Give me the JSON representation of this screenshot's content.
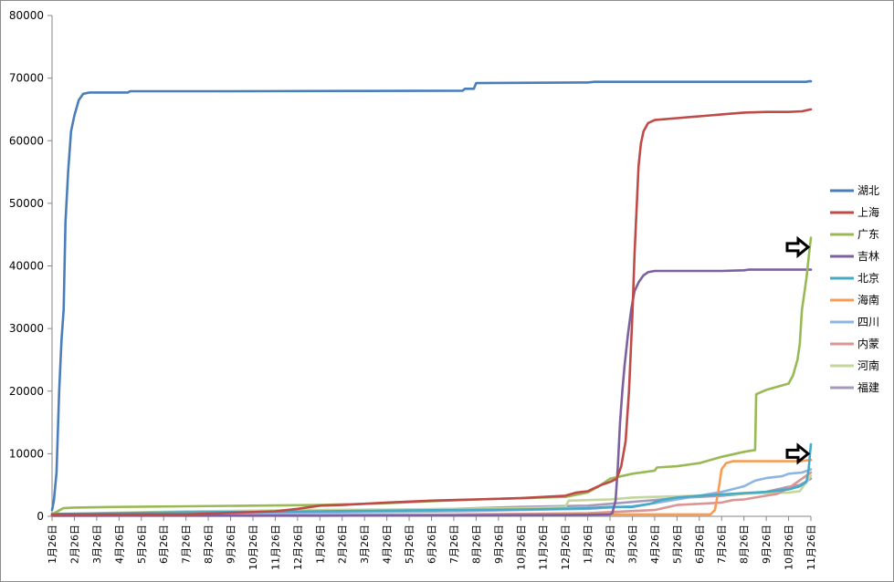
{
  "chart_data": {
    "type": "line",
    "title": "",
    "xlabel": "",
    "ylabel": "",
    "ylim": [
      0,
      80000
    ],
    "yticks": [
      "0",
      "10000",
      "20000",
      "30000",
      "40000",
      "50000",
      "60000",
      "70000",
      "80000"
    ],
    "x_tick_labels": [
      "1月26日",
      "2月26日",
      "3月26日",
      "4月26日",
      "5月26日",
      "6月26日",
      "7月26日",
      "8月26日",
      "9月26日",
      "10月26日",
      "11月26日",
      "12月26日",
      "1月26日",
      "2月26日",
      "3月26日",
      "4月26日",
      "5月26日",
      "6月26日",
      "7月26日",
      "8月26日",
      "9月26日",
      "10月26日",
      "11月26日",
      "12月26日",
      "1月26日",
      "2月26日",
      "3月26日",
      "4月26日",
      "5月26日",
      "6月26日",
      "7月26日",
      "8月26日",
      "9月26日",
      "10月26日",
      "11月26日"
    ],
    "x_domain": [
      0,
      34
    ],
    "grid": false,
    "legend_position": "right",
    "series": [
      {
        "name": "湖北",
        "color": "#4a7ebb",
        "points": [
          [
            0,
            1000
          ],
          [
            0.08,
            2500
          ],
          [
            0.2,
            7000
          ],
          [
            0.32,
            20000
          ],
          [
            0.42,
            28000
          ],
          [
            0.52,
            33000
          ],
          [
            0.6,
            47000
          ],
          [
            0.72,
            55000
          ],
          [
            0.85,
            61500
          ],
          [
            1.0,
            64000
          ],
          [
            1.2,
            66500
          ],
          [
            1.4,
            67500
          ],
          [
            1.7,
            67700
          ],
          [
            2.5,
            67700
          ],
          [
            3.4,
            67700
          ],
          [
            3.5,
            67900
          ],
          [
            8,
            67900
          ],
          [
            14,
            67950
          ],
          [
            18.4,
            68000
          ],
          [
            18.5,
            68300
          ],
          [
            18.9,
            68300
          ],
          [
            19.0,
            69200
          ],
          [
            24,
            69300
          ],
          [
            24.3,
            69400
          ],
          [
            30,
            69400
          ],
          [
            33.8,
            69400
          ],
          [
            33.9,
            69500
          ],
          [
            34,
            69500
          ]
        ]
      },
      {
        "name": "上海",
        "color": "#be4b48",
        "points": [
          [
            0,
            300
          ],
          [
            3,
            300
          ],
          [
            6,
            300
          ],
          [
            10,
            800
          ],
          [
            11,
            1200
          ],
          [
            12,
            1700
          ],
          [
            13,
            1800
          ],
          [
            15,
            2200
          ],
          [
            17,
            2500
          ],
          [
            19,
            2700
          ],
          [
            21,
            2900
          ],
          [
            23,
            3300
          ],
          [
            23.5,
            3800
          ],
          [
            24,
            4000
          ],
          [
            24.3,
            4500
          ],
          [
            24.6,
            5000
          ],
          [
            25.0,
            5500
          ],
          [
            25.3,
            6000
          ],
          [
            25.5,
            8000
          ],
          [
            25.7,
            12000
          ],
          [
            25.85,
            20000
          ],
          [
            26.0,
            32000
          ],
          [
            26.1,
            42000
          ],
          [
            26.2,
            50000
          ],
          [
            26.28,
            56000
          ],
          [
            26.38,
            59500
          ],
          [
            26.5,
            61500
          ],
          [
            26.7,
            62800
          ],
          [
            27.0,
            63300
          ],
          [
            28,
            63600
          ],
          [
            29,
            63900
          ],
          [
            30,
            64200
          ],
          [
            31,
            64500
          ],
          [
            32,
            64600
          ],
          [
            33,
            64600
          ],
          [
            33.6,
            64700
          ],
          [
            34,
            65000
          ]
        ]
      },
      {
        "name": "广东",
        "color": "#98b954",
        "points": [
          [
            0,
            300
          ],
          [
            0.2,
            700
          ],
          [
            0.5,
            1300
          ],
          [
            1,
            1400
          ],
          [
            3,
            1500
          ],
          [
            6,
            1600
          ],
          [
            9,
            1700
          ],
          [
            12,
            1800
          ],
          [
            15,
            2100
          ],
          [
            17,
            2400
          ],
          [
            19,
            2700
          ],
          [
            21,
            2900
          ],
          [
            23,
            3100
          ],
          [
            24,
            3800
          ],
          [
            24.5,
            4800
          ],
          [
            25,
            6000
          ],
          [
            26,
            6800
          ],
          [
            27,
            7300
          ],
          [
            27.1,
            7800
          ],
          [
            28,
            8000
          ],
          [
            29,
            8500
          ],
          [
            30,
            9500
          ],
          [
            31,
            10300
          ],
          [
            31.5,
            10600
          ],
          [
            31.55,
            19500
          ],
          [
            32,
            20200
          ],
          [
            33,
            21200
          ],
          [
            33.2,
            22500
          ],
          [
            33.4,
            25000
          ],
          [
            33.5,
            27500
          ],
          [
            33.6,
            33000
          ],
          [
            33.8,
            38000
          ],
          [
            33.95,
            43000
          ],
          [
            34,
            44500
          ]
        ]
      },
      {
        "name": "吉林",
        "color": "#7d60a0",
        "points": [
          [
            0,
            100
          ],
          [
            12,
            100
          ],
          [
            18,
            150
          ],
          [
            23,
            200
          ],
          [
            25,
            300
          ],
          [
            25.1,
            500
          ],
          [
            25.25,
            2500
          ],
          [
            25.35,
            8000
          ],
          [
            25.45,
            15000
          ],
          [
            25.55,
            20000
          ],
          [
            25.65,
            24000
          ],
          [
            25.8,
            29000
          ],
          [
            25.95,
            33000
          ],
          [
            26.1,
            36000
          ],
          [
            26.3,
            37500
          ],
          [
            26.5,
            38500
          ],
          [
            26.7,
            39000
          ],
          [
            27,
            39200
          ],
          [
            30,
            39200
          ],
          [
            31,
            39300
          ],
          [
            31.2,
            39400
          ],
          [
            34,
            39400
          ]
        ]
      },
      {
        "name": "北京",
        "color": "#46aac5",
        "points": [
          [
            0,
            400
          ],
          [
            3,
            500
          ],
          [
            6,
            650
          ],
          [
            9,
            700
          ],
          [
            12,
            800
          ],
          [
            15,
            900
          ],
          [
            18,
            1000
          ],
          [
            21,
            1100
          ],
          [
            24,
            1300
          ],
          [
            25,
            1500
          ],
          [
            26,
            1500
          ],
          [
            26.8,
            2000
          ],
          [
            27.3,
            2600
          ],
          [
            28,
            3000
          ],
          [
            29,
            3300
          ],
          [
            30,
            3500
          ],
          [
            31,
            3700
          ],
          [
            32,
            3900
          ],
          [
            32.5,
            4100
          ],
          [
            33,
            4300
          ],
          [
            33.5,
            4800
          ],
          [
            33.8,
            5500
          ],
          [
            33.9,
            7500
          ],
          [
            33.96,
            10000
          ],
          [
            34,
            11500
          ]
        ]
      },
      {
        "name": "海南",
        "color": "#f59d56",
        "points": [
          [
            0,
            100
          ],
          [
            6,
            150
          ],
          [
            12,
            150
          ],
          [
            15,
            200
          ],
          [
            18,
            200
          ],
          [
            21,
            200
          ],
          [
            24,
            300
          ],
          [
            27,
            300
          ],
          [
            29.5,
            300
          ],
          [
            29.7,
            1000
          ],
          [
            29.85,
            4000
          ],
          [
            30,
            7500
          ],
          [
            30.2,
            8500
          ],
          [
            30.5,
            8800
          ],
          [
            33.5,
            8800
          ],
          [
            34,
            9000
          ]
        ]
      },
      {
        "name": "四川",
        "color": "#8eb4e3",
        "points": [
          [
            0,
            200
          ],
          [
            3,
            300
          ],
          [
            6,
            400
          ],
          [
            9,
            500
          ],
          [
            12,
            600
          ],
          [
            15,
            700
          ],
          [
            18,
            800
          ],
          [
            21,
            1000
          ],
          [
            24,
            1200
          ],
          [
            26,
            1600
          ],
          [
            27,
            2100
          ],
          [
            28,
            2700
          ],
          [
            29,
            3300
          ],
          [
            30,
            3900
          ],
          [
            31,
            4800
          ],
          [
            31.5,
            5700
          ],
          [
            32,
            6100
          ],
          [
            32.7,
            6400
          ],
          [
            33,
            6800
          ],
          [
            33.6,
            7000
          ],
          [
            34,
            7500
          ]
        ]
      },
      {
        "name": "内蒙",
        "color": "#d99694",
        "points": [
          [
            0,
            100
          ],
          [
            6,
            150
          ],
          [
            12,
            200
          ],
          [
            18,
            300
          ],
          [
            21,
            400
          ],
          [
            24,
            500
          ],
          [
            27,
            1000
          ],
          [
            28,
            1800
          ],
          [
            29,
            2000
          ],
          [
            30,
            2200
          ],
          [
            30.5,
            2600
          ],
          [
            31,
            2700
          ],
          [
            32,
            3300
          ],
          [
            32.5,
            3600
          ],
          [
            33,
            4500
          ],
          [
            33.6,
            6000
          ],
          [
            34,
            7000
          ]
        ]
      },
      {
        "name": "河南",
        "color": "#c3d69b",
        "points": [
          [
            0,
            300
          ],
          [
            3,
            600
          ],
          [
            6,
            800
          ],
          [
            9,
            900
          ],
          [
            12,
            1000
          ],
          [
            15,
            1100
          ],
          [
            18,
            1200
          ],
          [
            21,
            1300
          ],
          [
            23,
            1500
          ],
          [
            23.15,
            2500
          ],
          [
            24,
            2600
          ],
          [
            25,
            2700
          ],
          [
            26,
            3000
          ],
          [
            27,
            3100
          ],
          [
            28,
            3200
          ],
          [
            29,
            3300
          ],
          [
            30,
            3500
          ],
          [
            31,
            3600
          ],
          [
            32,
            3700
          ],
          [
            33,
            3800
          ],
          [
            33.5,
            4000
          ],
          [
            33.8,
            5500
          ],
          [
            34,
            6500
          ]
        ]
      },
      {
        "name": "福建",
        "color": "#a599bd",
        "points": [
          [
            0,
            100
          ],
          [
            6,
            300
          ],
          [
            12,
            700
          ],
          [
            18,
            1200
          ],
          [
            21,
            1500
          ],
          [
            24,
            1700
          ],
          [
            25,
            2000
          ],
          [
            26,
            2300
          ],
          [
            27,
            2600
          ],
          [
            28,
            2900
          ],
          [
            29,
            3100
          ],
          [
            30,
            3300
          ],
          [
            31,
            3600
          ],
          [
            32,
            3900
          ],
          [
            33,
            4700
          ],
          [
            33.5,
            5000
          ],
          [
            34,
            6000
          ]
        ]
      }
    ],
    "annotations": [
      {
        "type": "arrow-right-icon",
        "x": 34,
        "y": 43000
      },
      {
        "type": "arrow-right-icon",
        "x": 34,
        "y": 10000
      }
    ]
  }
}
